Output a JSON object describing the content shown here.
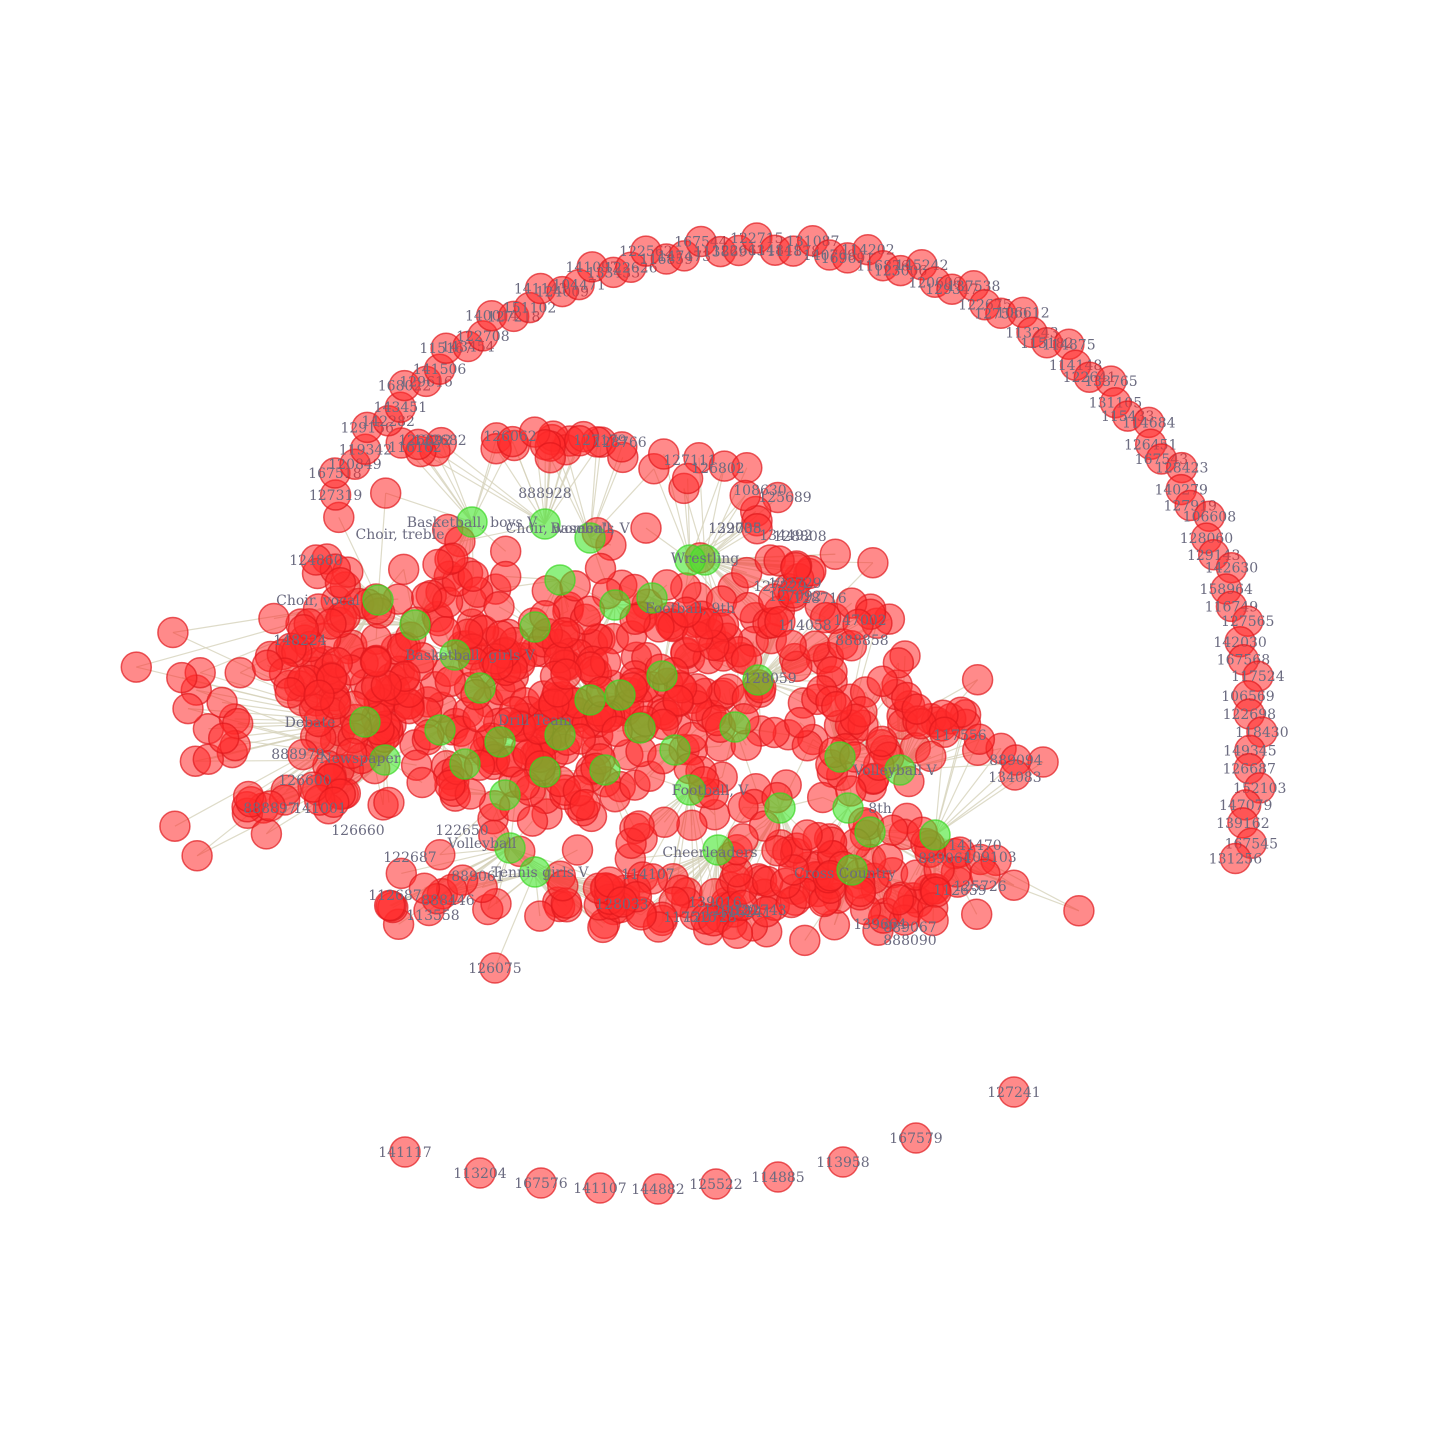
{
  "colors": {
    "student_fill": "#ff2a2a",
    "student_stroke": "#e0181c",
    "activity_fill": "#43e62b",
    "activity_stroke": "#39d622",
    "edge": "#d6d2ba",
    "label": "#6b6b80"
  },
  "graph": {
    "node_kinds": [
      "student",
      "activity"
    ],
    "activity_labels": [
      "Basketball, boys V",
      "Choir, treble",
      "Choir, women's",
      "Choir, vocal",
      "Baseball, V",
      "Wrestling",
      "Debate",
      "Drill Team",
      "Cheerleaders",
      "Tennis girls V",
      "Volleyball",
      "Volleyball V",
      "Cross Country",
      "Football, V",
      "Football, 9th",
      "Basketball, girls V",
      "Newspaper",
      "8th"
    ],
    "core_student_labels": [
      "124860",
      "126075",
      "122687",
      "889061",
      "128033",
      "114107",
      "888897",
      "888979",
      "141001",
      "126660",
      "122650",
      "889064",
      "109103",
      "139664",
      "888090",
      "889094",
      "134083",
      "127111",
      "126802",
      "126692",
      "122682",
      "128808",
      "134492",
      "126062",
      "108630",
      "125689",
      "127179",
      "128766",
      "147002",
      "116162",
      "888928",
      "117556",
      "122708",
      "114058",
      "888446",
      "113558",
      "112687",
      "117516",
      "122728",
      "129820",
      "127229",
      "127092",
      "128059",
      "139035",
      "126600",
      "148224",
      "141470",
      "889067",
      "888858",
      "122729",
      "128716",
      "139016",
      "116241",
      "122743",
      "125726",
      "112659"
    ],
    "outer_arc_labels": [
      "127319",
      "167518",
      "120849",
      "119342",
      "129156",
      "142282",
      "143451",
      "168022",
      "129616",
      "141506",
      "115167",
      "143454",
      "122708",
      "140014",
      "127218",
      "151102",
      "141143",
      "124009",
      "104471",
      "141097",
      "133433",
      "122626",
      "122562",
      "116859",
      "147473",
      "167544",
      "113869",
      "122663",
      "122715",
      "114841",
      "111878",
      "131087",
      "140769",
      "169691",
      "114202",
      "116876",
      "123006",
      "145242",
      "120606",
      "129347",
      "137538",
      "122675",
      "127580",
      "106612",
      "113243",
      "115182",
      "114875",
      "114148",
      "122641",
      "133765",
      "131105",
      "115433",
      "114684",
      "126451",
      "167543",
      "128423",
      "140279",
      "127919",
      "106608",
      "128060",
      "129143",
      "142630",
      "158964",
      "116749",
      "127565",
      "142030",
      "167568",
      "117524",
      "106569",
      "122698",
      "118430",
      "149345",
      "126687",
      "152103",
      "147079",
      "139162",
      "167545",
      "131256"
    ],
    "bottom_arc_labels": [
      "141117",
      "113204",
      "167576",
      "141107",
      "144882",
      "125522",
      "114885",
      "113958",
      "167579",
      "127241"
    ]
  }
}
